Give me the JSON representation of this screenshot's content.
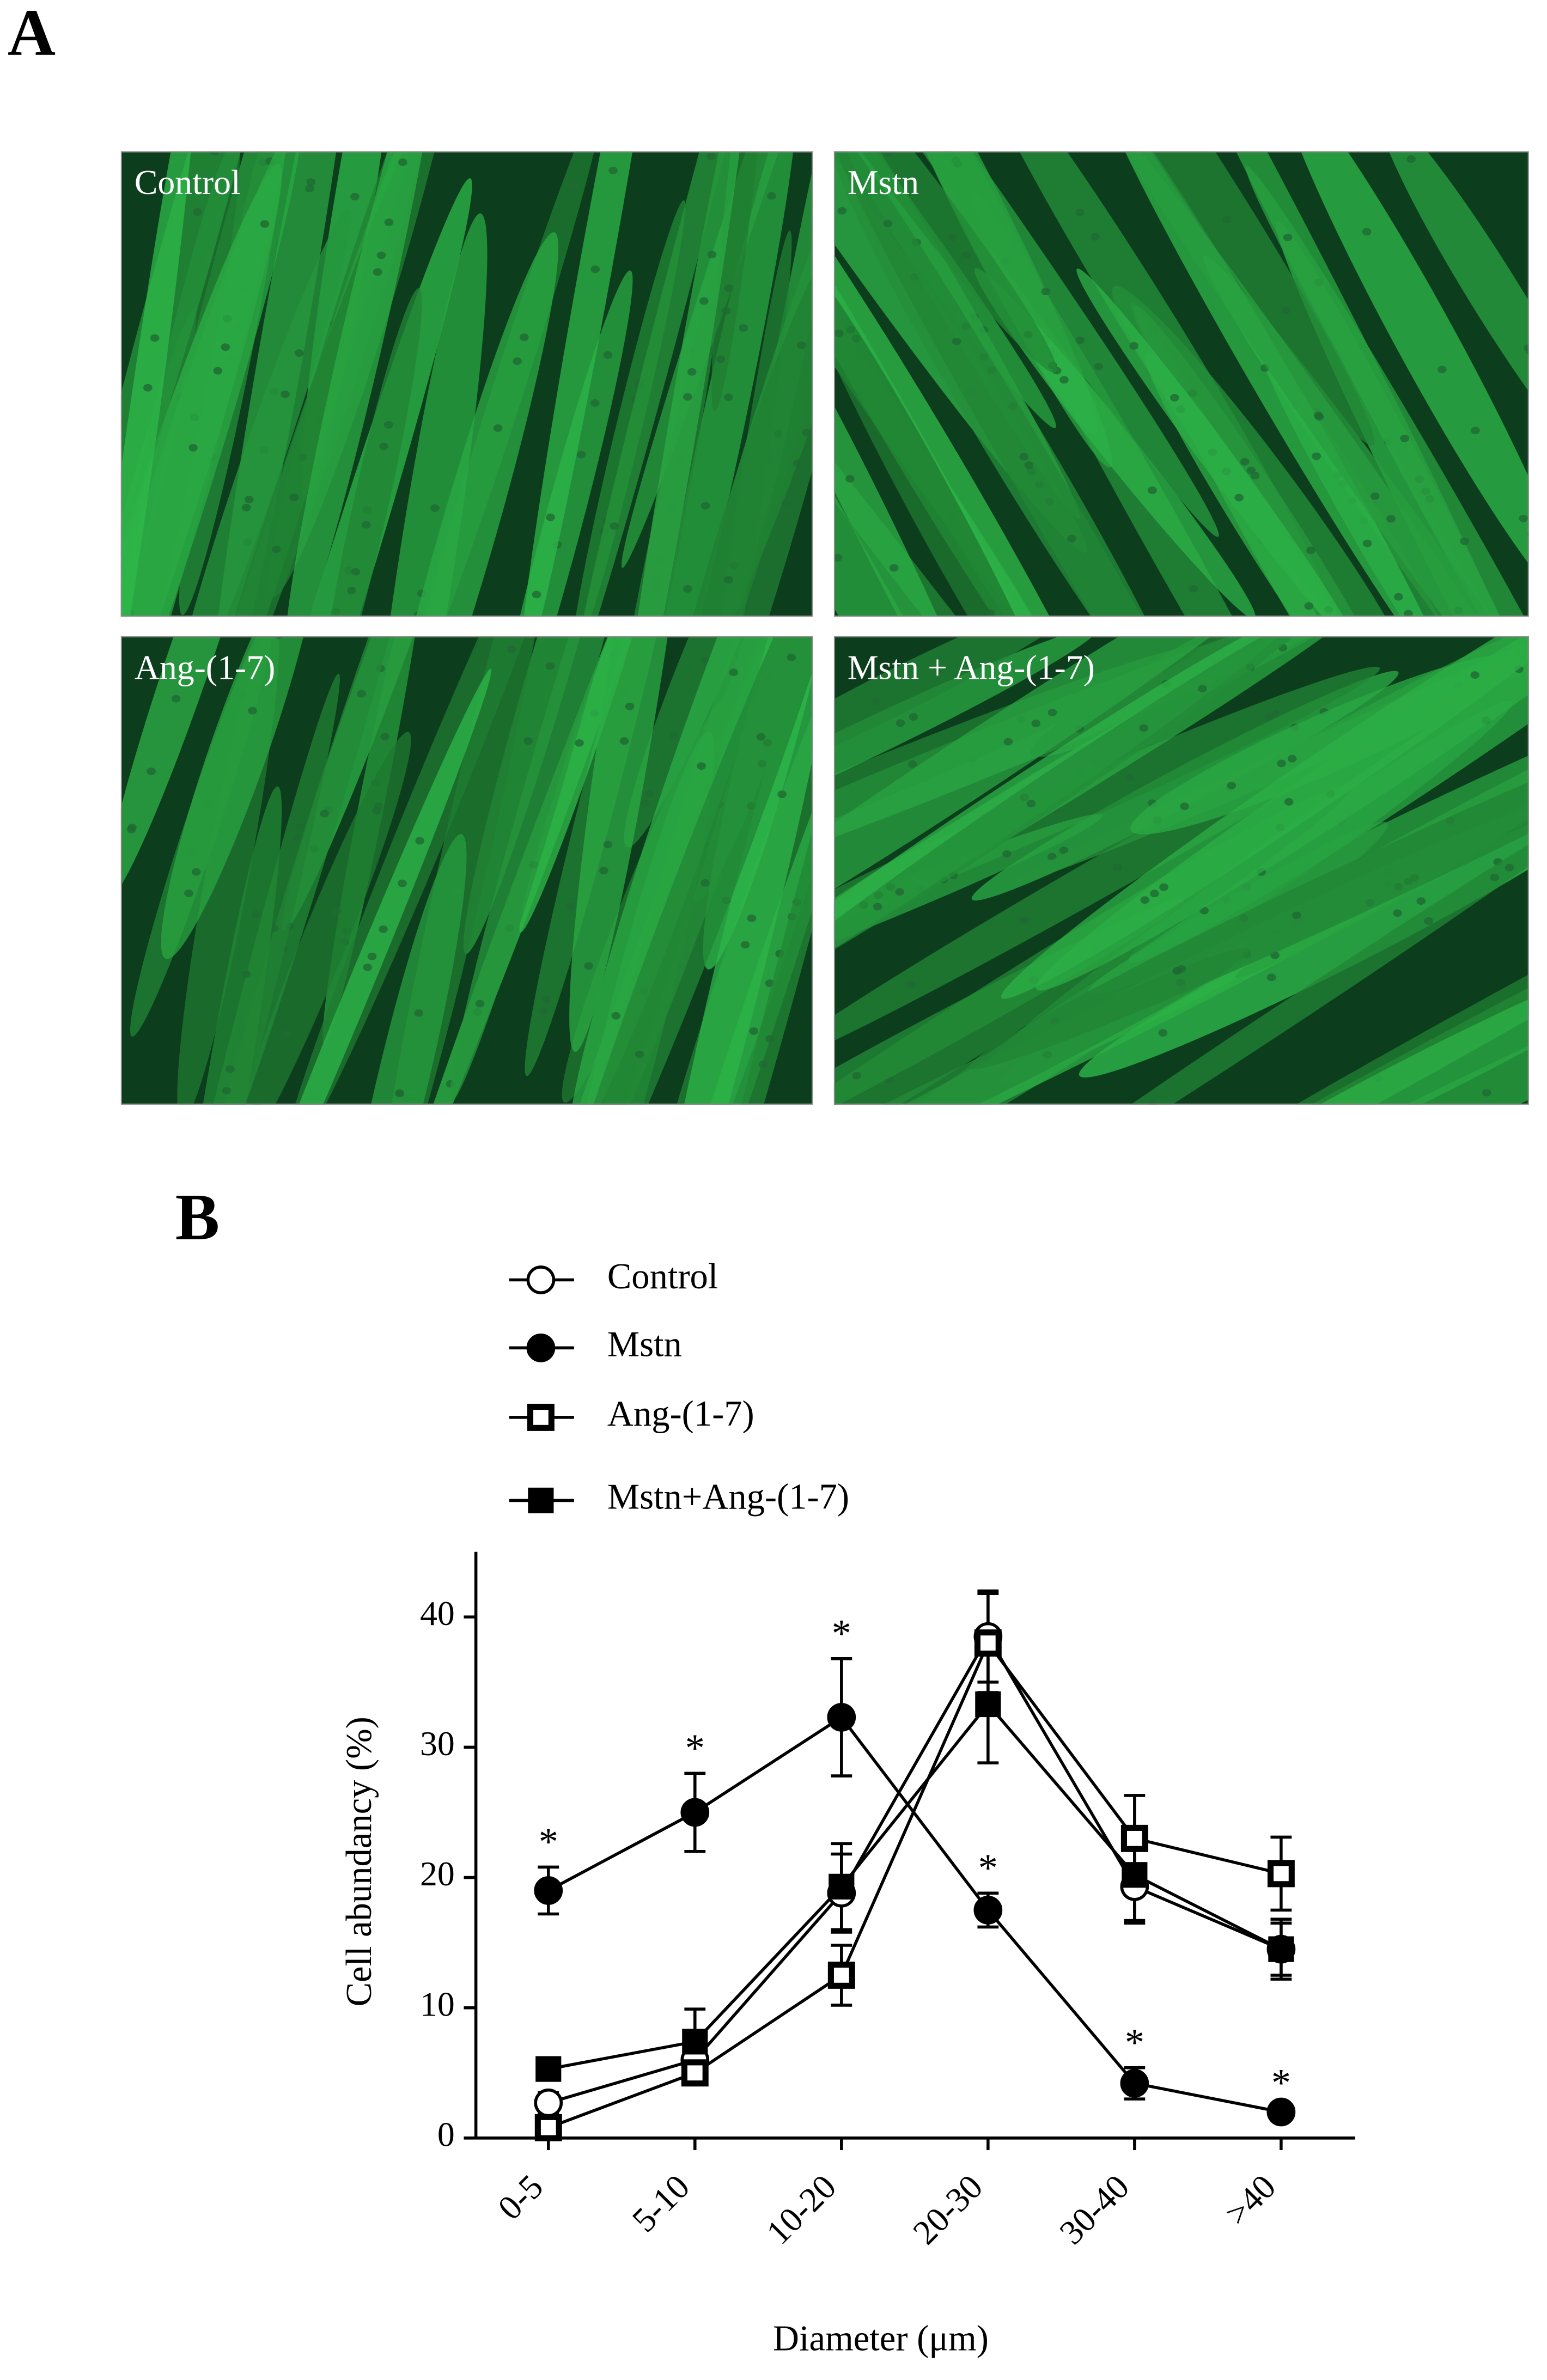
{
  "panel_a": {
    "label": "A",
    "images": [
      {
        "label": "Control"
      },
      {
        "label": "Mstn"
      },
      {
        "label": "Ang-(1-7)"
      },
      {
        "label": "Mstn + Ang-(1-7)"
      }
    ]
  },
  "panel_b": {
    "label": "B"
  },
  "chart_data": {
    "type": "line",
    "x_label": "Diameter (μm)",
    "y_label": "Cell abundancy (%)",
    "categories": [
      "0-5",
      "5-10",
      "10-20",
      "20-30",
      "30-40",
      ">40"
    ],
    "ylim": [
      0,
      45
    ],
    "yticks": [
      0,
      10,
      20,
      30,
      40
    ],
    "series": [
      {
        "name": "Control",
        "color": "#000000",
        "marker": "circle",
        "fill": "open",
        "values": [
          2.7,
          6.0,
          18.8,
          38.5,
          19.3,
          14.5
        ],
        "errors": [
          0.8,
          1.0,
          3.0,
          3.5,
          2.8,
          2.0
        ]
      },
      {
        "name": "Mstn",
        "color": "#000000",
        "marker": "circle",
        "fill": "filled",
        "values": [
          19.0,
          25.0,
          32.3,
          17.5,
          4.2,
          2.0
        ],
        "errors": [
          1.8,
          3.0,
          4.5,
          1.3,
          1.2,
          0.3
        ],
        "significance": [
          "*",
          "*",
          "*",
          "*",
          "*",
          "*"
        ]
      },
      {
        "name": "Ang-(1-7)",
        "color": "#000000",
        "marker": "square",
        "fill": "open",
        "values": [
          0.8,
          5.0,
          12.5,
          38.0,
          23.0,
          20.3
        ],
        "errors": [
          0.5,
          0.8,
          2.3,
          3.8,
          3.3,
          2.8
        ]
      },
      {
        "name": "Mstn+Ang-(1-7)",
        "color": "#000000",
        "marker": "square",
        "fill": "filled",
        "values": [
          5.3,
          7.4,
          19.3,
          33.3,
          20.2,
          14.5
        ],
        "errors": [
          0.8,
          2.5,
          3.3,
          4.5,
          3.5,
          2.3
        ]
      }
    ]
  }
}
